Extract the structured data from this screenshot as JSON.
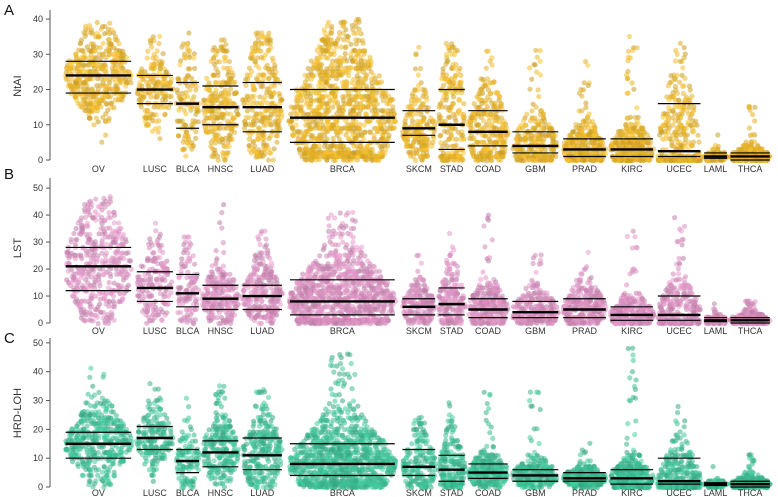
{
  "chart_data": [
    {
      "type": "scatter",
      "panel": "A",
      "ylabel": "NtAI",
      "ylim": [
        0,
        42
      ],
      "yticks": [
        0,
        10,
        20,
        30,
        40
      ],
      "color": "#e8b428",
      "categories": [
        "OV",
        "LUSC",
        "BLCA",
        "HNSC",
        "LUAD",
        "BRCA",
        "SKCM",
        "STAD",
        "COAD",
        "GBM",
        "PRAD",
        "KIRC",
        "UCEC",
        "LAML",
        "THCA"
      ],
      "widths": [
        1.0,
        0.55,
        0.35,
        0.55,
        0.6,
        1.6,
        0.5,
        0.4,
        0.6,
        0.7,
        0.65,
        0.65,
        0.65,
        0.35,
        0.6
      ],
      "counts": [
        420,
        180,
        110,
        240,
        270,
        1050,
        190,
        200,
        280,
        260,
        310,
        350,
        330,
        90,
        340
      ],
      "ymax": [
        39,
        36,
        37,
        35,
        36,
        40,
        32,
        33,
        32,
        31,
        33,
        35,
        33,
        8,
        16
      ],
      "q1": [
        19,
        16,
        9,
        10,
        8,
        5,
        7,
        3,
        4,
        2,
        1,
        1,
        1,
        0.5,
        0
      ],
      "median": [
        24,
        20,
        16,
        15,
        15,
        12,
        9,
        10,
        8,
        4,
        3,
        3,
        2.5,
        1,
        1
      ],
      "q3": [
        28,
        24,
        22,
        21,
        22,
        20,
        14,
        20,
        14,
        8,
        6,
        6,
        16,
        2,
        2
      ]
    },
    {
      "type": "scatter",
      "panel": "B",
      "ylabel": "LST",
      "ylim": [
        0,
        53
      ],
      "yticks": [
        0,
        10,
        20,
        30,
        40,
        50
      ],
      "color": "#d890bf",
      "categories": [
        "OV",
        "LUSC",
        "BLCA",
        "HNSC",
        "LUAD",
        "BRCA",
        "SKCM",
        "STAD",
        "COAD",
        "GBM",
        "PRAD",
        "KIRC",
        "UCEC",
        "LAML",
        "THCA"
      ],
      "widths": [
        1.0,
        0.55,
        0.35,
        0.55,
        0.6,
        1.6,
        0.5,
        0.4,
        0.6,
        0.7,
        0.65,
        0.65,
        0.65,
        0.35,
        0.6
      ],
      "counts": [
        420,
        180,
        110,
        240,
        270,
        1050,
        190,
        200,
        280,
        260,
        310,
        350,
        330,
        90,
        340
      ],
      "ymax": [
        47,
        37,
        33,
        44,
        35,
        42,
        27,
        34,
        40,
        26,
        26,
        34,
        42,
        7,
        8
      ],
      "q1": [
        12,
        8,
        6,
        5,
        5,
        3,
        3,
        3,
        2,
        2,
        2,
        1,
        1,
        0.5,
        0
      ],
      "median": [
        21,
        13,
        11,
        9,
        10,
        8,
        6,
        7,
        5,
        4,
        5,
        3,
        3,
        1,
        1
      ],
      "q3": [
        28,
        19,
        18,
        14,
        14,
        16,
        9,
        13,
        9,
        8,
        9,
        6,
        10,
        2,
        2
      ]
    },
    {
      "type": "scatter",
      "panel": "C",
      "ylabel": "HRD-LOH",
      "ylim": [
        0,
        51
      ],
      "yticks": [
        0,
        10,
        20,
        30,
        40,
        50
      ],
      "color": "#3fbf96",
      "categories": [
        "OV",
        "LUSC",
        "BLCA",
        "HNSC",
        "LUAD",
        "BRCA",
        "SKCM",
        "STAD",
        "COAD",
        "GBM",
        "PRAD",
        "KIRC",
        "UCEC",
        "LAML",
        "THCA"
      ],
      "widths": [
        1.0,
        0.55,
        0.35,
        0.55,
        0.6,
        1.6,
        0.5,
        0.4,
        0.6,
        0.7,
        0.65,
        0.65,
        0.65,
        0.35,
        0.6
      ],
      "counts": [
        420,
        180,
        110,
        240,
        270,
        1050,
        190,
        200,
        280,
        260,
        310,
        350,
        330,
        90,
        340
      ],
      "ymax": [
        41,
        37,
        33,
        35,
        34,
        46,
        25,
        29,
        33,
        35,
        16,
        49,
        29,
        7,
        11
      ],
      "q1": [
        10,
        13,
        5,
        7,
        6,
        4,
        4,
        2,
        3,
        2,
        2,
        1,
        1,
        0.5,
        0
      ],
      "median": [
        15,
        17,
        9,
        12,
        11,
        8,
        7,
        6,
        5,
        4,
        3,
        3,
        2,
        1,
        1
      ],
      "q3": [
        19,
        21,
        13,
        16,
        17,
        15,
        13,
        11,
        8,
        6,
        5,
        6,
        10,
        1.5,
        2
      ]
    }
  ]
}
